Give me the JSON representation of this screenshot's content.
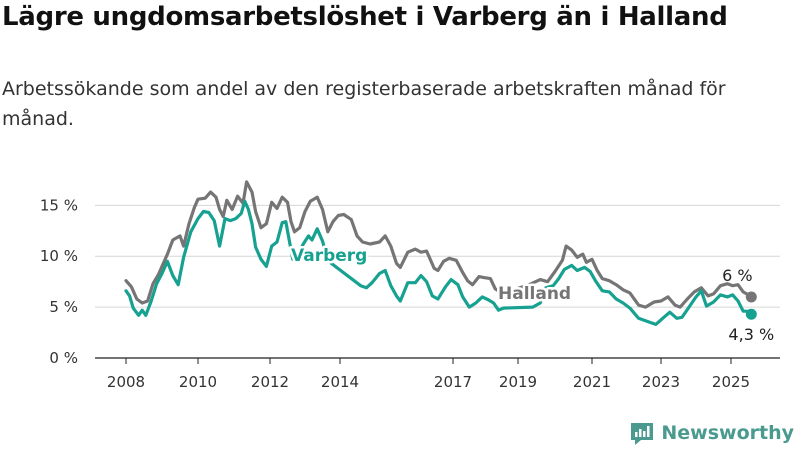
{
  "header": {
    "title": "Lägre ungdomsarbetslöshet i Varberg än i Halland",
    "subtitle": "Arbetssökande som andel av den registerbaserade arbetskraften månad för månad."
  },
  "brand": {
    "name": "Newsworthy",
    "icon": "newsworthy-logo-icon",
    "color": "#4a9a8f"
  },
  "chart_data": {
    "type": "line",
    "x_ticks": [
      "2008",
      "2010",
      "2012",
      "2014",
      "2017",
      "2019",
      "2021",
      "2023",
      "2025"
    ],
    "y_ticks": [
      {
        "value": 0,
        "label": "0 %"
      },
      {
        "value": 5,
        "label": "5 %"
      },
      {
        "value": 10,
        "label": "10 %"
      },
      {
        "value": 15,
        "label": "15 %"
      }
    ],
    "ylim": [
      0,
      17
    ],
    "grid": "horizontal",
    "series": [
      {
        "name": "Halland",
        "color": "#757575",
        "end_label": "6 %",
        "points": [
          [
            2008.0,
            7.6
          ],
          [
            2008.15,
            7.0
          ],
          [
            2008.3,
            5.8
          ],
          [
            2008.45,
            5.4
          ],
          [
            2008.6,
            5.6
          ],
          [
            2008.75,
            7.3
          ],
          [
            2008.9,
            8.2
          ],
          [
            2009.0,
            9.0
          ],
          [
            2009.15,
            10.2
          ],
          [
            2009.3,
            11.6
          ],
          [
            2009.5,
            12.0
          ],
          [
            2009.6,
            11.0
          ],
          [
            2009.75,
            13.2
          ],
          [
            2009.9,
            14.8
          ],
          [
            2010.0,
            15.6
          ],
          [
            2010.2,
            15.7
          ],
          [
            2010.35,
            16.3
          ],
          [
            2010.5,
            15.8
          ],
          [
            2010.6,
            14.6
          ],
          [
            2010.7,
            13.9
          ],
          [
            2010.8,
            15.5
          ],
          [
            2010.95,
            14.6
          ],
          [
            2011.1,
            15.9
          ],
          [
            2011.25,
            15.2
          ],
          [
            2011.35,
            17.3
          ],
          [
            2011.5,
            16.3
          ],
          [
            2011.6,
            14.4
          ],
          [
            2011.75,
            12.8
          ],
          [
            2011.9,
            13.2
          ],
          [
            2012.05,
            15.3
          ],
          [
            2012.2,
            14.7
          ],
          [
            2012.35,
            15.8
          ],
          [
            2012.5,
            15.3
          ],
          [
            2012.6,
            13.4
          ],
          [
            2012.7,
            12.4
          ],
          [
            2012.85,
            12.8
          ],
          [
            2013.0,
            14.4
          ],
          [
            2013.15,
            15.4
          ],
          [
            2013.35,
            15.8
          ],
          [
            2013.5,
            14.6
          ],
          [
            2013.65,
            12.4
          ],
          [
            2013.8,
            13.4
          ],
          [
            2013.95,
            14.0
          ],
          [
            2014.1,
            14.1
          ],
          [
            2014.3,
            13.6
          ],
          [
            2014.45,
            12.0
          ],
          [
            2014.6,
            11.4
          ],
          [
            2014.8,
            11.2
          ],
          [
            2015.05,
            11.4
          ],
          [
            2015.2,
            12.0
          ],
          [
            2015.35,
            11.0
          ],
          [
            2015.5,
            9.3
          ],
          [
            2015.6,
            8.9
          ],
          [
            2015.8,
            10.4
          ],
          [
            2016.0,
            10.7
          ],
          [
            2016.15,
            10.4
          ],
          [
            2016.3,
            10.5
          ],
          [
            2016.5,
            8.8
          ],
          [
            2016.6,
            8.6
          ],
          [
            2016.75,
            9.5
          ],
          [
            2016.9,
            9.8
          ],
          [
            2017.1,
            9.6
          ],
          [
            2017.3,
            8.4
          ],
          [
            2017.45,
            7.6
          ],
          [
            2017.6,
            7.2
          ],
          [
            2017.8,
            8.0
          ],
          [
            2017.95,
            7.9
          ],
          [
            2018.15,
            7.8
          ],
          [
            2018.3,
            6.8
          ],
          [
            2018.45,
            6.5
          ],
          [
            2018.55,
            6.3
          ],
          [
            2019.05,
            6.9
          ],
          [
            2019.3,
            7.2
          ],
          [
            2019.6,
            7.7
          ],
          [
            2019.8,
            7.5
          ],
          [
            2020.0,
            8.5
          ],
          [
            2020.2,
            9.6
          ],
          [
            2020.3,
            11.0
          ],
          [
            2020.45,
            10.6
          ],
          [
            2020.6,
            9.9
          ],
          [
            2020.75,
            10.2
          ],
          [
            2020.85,
            9.4
          ],
          [
            2021.0,
            9.7
          ],
          [
            2021.15,
            8.6
          ],
          [
            2021.3,
            7.8
          ],
          [
            2021.5,
            7.6
          ],
          [
            2021.7,
            7.2
          ],
          [
            2021.9,
            6.7
          ],
          [
            2022.1,
            6.4
          ],
          [
            2022.35,
            5.2
          ],
          [
            2022.55,
            5.0
          ],
          [
            2022.8,
            5.5
          ],
          [
            2023.0,
            5.6
          ],
          [
            2023.2,
            6.0
          ],
          [
            2023.4,
            5.2
          ],
          [
            2023.55,
            5.0
          ],
          [
            2023.75,
            5.8
          ],
          [
            2023.95,
            6.5
          ],
          [
            2024.15,
            6.9
          ],
          [
            2024.35,
            6.1
          ],
          [
            2024.5,
            6.3
          ],
          [
            2024.7,
            7.1
          ],
          [
            2024.9,
            7.3
          ],
          [
            2025.05,
            7.1
          ],
          [
            2025.2,
            7.2
          ],
          [
            2025.35,
            6.5
          ],
          [
            2025.5,
            6.2
          ],
          [
            2025.58,
            6.0
          ]
        ]
      },
      {
        "name": "Varberg",
        "color": "#16a191",
        "end_label": "4,3 %",
        "points": [
          [
            2008.0,
            6.6
          ],
          [
            2008.1,
            6.1
          ],
          [
            2008.2,
            4.9
          ],
          [
            2008.35,
            4.2
          ],
          [
            2008.45,
            4.7
          ],
          [
            2008.55,
            4.2
          ],
          [
            2008.7,
            5.6
          ],
          [
            2008.85,
            7.3
          ],
          [
            2009.0,
            8.3
          ],
          [
            2009.15,
            9.5
          ],
          [
            2009.3,
            8.1
          ],
          [
            2009.45,
            7.2
          ],
          [
            2009.6,
            9.9
          ],
          [
            2009.8,
            12.4
          ],
          [
            2010.0,
            13.7
          ],
          [
            2010.15,
            14.4
          ],
          [
            2010.3,
            14.3
          ],
          [
            2010.45,
            13.5
          ],
          [
            2010.6,
            11.0
          ],
          [
            2010.75,
            13.7
          ],
          [
            2010.9,
            13.5
          ],
          [
            2011.05,
            13.7
          ],
          [
            2011.2,
            14.2
          ],
          [
            2011.3,
            15.4
          ],
          [
            2011.4,
            14.6
          ],
          [
            2011.5,
            13.2
          ],
          [
            2011.6,
            10.9
          ],
          [
            2011.75,
            9.7
          ],
          [
            2011.9,
            9.0
          ],
          [
            2012.05,
            11.0
          ],
          [
            2012.2,
            11.4
          ],
          [
            2012.35,
            13.3
          ],
          [
            2012.45,
            13.4
          ],
          [
            2012.55,
            11.6
          ],
          [
            2012.65,
            9.7
          ],
          [
            2012.8,
            10.2
          ],
          [
            2012.95,
            11.2
          ],
          [
            2013.1,
            12.0
          ],
          [
            2013.2,
            11.6
          ],
          [
            2013.35,
            12.7
          ],
          [
            2013.5,
            11.5
          ],
          [
            2013.62,
            10.0
          ],
          [
            2013.75,
            9.3
          ],
          [
            2014.55,
            7.1
          ],
          [
            2014.7,
            6.9
          ],
          [
            2014.85,
            7.4
          ],
          [
            2015.05,
            8.3
          ],
          [
            2015.2,
            8.6
          ],
          [
            2015.35,
            7.1
          ],
          [
            2015.5,
            6.1
          ],
          [
            2015.6,
            5.6
          ],
          [
            2015.8,
            7.4
          ],
          [
            2016.0,
            7.4
          ],
          [
            2016.15,
            8.1
          ],
          [
            2016.3,
            7.5
          ],
          [
            2016.45,
            6.1
          ],
          [
            2016.6,
            5.8
          ],
          [
            2016.8,
            7.0
          ],
          [
            2016.95,
            7.7
          ],
          [
            2017.15,
            7.2
          ],
          [
            2017.3,
            6.0
          ],
          [
            2017.5,
            5.0
          ],
          [
            2017.7,
            5.4
          ],
          [
            2017.9,
            6.0
          ],
          [
            2018.1,
            5.7
          ],
          [
            2018.25,
            5.4
          ],
          [
            2018.4,
            4.7
          ],
          [
            2018.55,
            4.9
          ],
          [
            2019.4,
            5.0
          ],
          [
            2019.6,
            5.4
          ],
          [
            2019.75,
            6.9
          ],
          [
            2019.95,
            7.1
          ],
          [
            2020.1,
            7.8
          ],
          [
            2020.25,
            8.7
          ],
          [
            2020.45,
            9.1
          ],
          [
            2020.6,
            8.6
          ],
          [
            2020.8,
            8.9
          ],
          [
            2020.95,
            8.5
          ],
          [
            2021.1,
            7.6
          ],
          [
            2021.3,
            6.6
          ],
          [
            2021.5,
            6.5
          ],
          [
            2021.7,
            5.8
          ],
          [
            2021.9,
            5.4
          ],
          [
            2022.1,
            4.9
          ],
          [
            2022.35,
            3.9
          ],
          [
            2022.6,
            3.6
          ],
          [
            2022.85,
            3.3
          ],
          [
            2023.05,
            3.9
          ],
          [
            2023.25,
            4.5
          ],
          [
            2023.45,
            3.9
          ],
          [
            2023.6,
            4.0
          ],
          [
            2023.8,
            5.0
          ],
          [
            2024.0,
            6.0
          ],
          [
            2024.15,
            6.6
          ],
          [
            2024.3,
            5.1
          ],
          [
            2024.5,
            5.5
          ],
          [
            2024.7,
            6.2
          ],
          [
            2024.9,
            6.0
          ],
          [
            2025.05,
            6.2
          ],
          [
            2025.2,
            5.6
          ],
          [
            2025.35,
            4.6
          ],
          [
            2025.45,
            4.6
          ],
          [
            2025.58,
            4.3
          ]
        ]
      }
    ]
  }
}
